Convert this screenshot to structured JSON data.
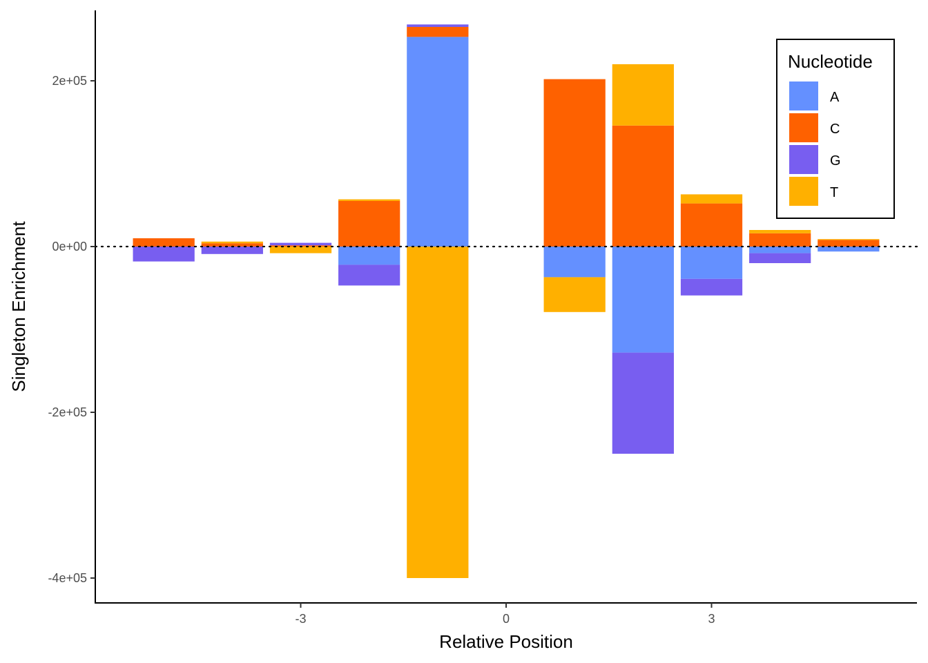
{
  "chart_data": {
    "type": "bar",
    "stacked": "diverging",
    "xlabel": "Relative Position",
    "ylabel": "Singleton Enrichment",
    "x": [
      -5,
      -4,
      -3,
      -2,
      -1,
      1,
      2,
      3,
      4,
      5
    ],
    "xticks": [
      -3,
      0,
      3
    ],
    "xtick_labels": [
      "-3",
      "0",
      "3"
    ],
    "xlim": [
      -6,
      6
    ],
    "ylim": [
      -430000,
      285000
    ],
    "yticks": [
      -400000,
      -200000,
      0,
      200000
    ],
    "ytick_labels": [
      "-4e+05",
      "-2e+05",
      "0e+00",
      "2e+05"
    ],
    "reference_line": {
      "y": 0,
      "style": "dotted"
    },
    "grid": false,
    "legend": {
      "title": "Nucleotide",
      "position": "top-right"
    },
    "series": [
      {
        "name": "A",
        "color": "#6490FF",
        "values": [
          0,
          0,
          0,
          -22000,
          253000,
          -37000,
          -128000,
          -39000,
          -8000,
          -6000
        ]
      },
      {
        "name": "C",
        "color": "#FE6100",
        "values": [
          10000,
          4000,
          1500,
          55000,
          12000,
          202000,
          146000,
          52000,
          16000,
          8000
        ]
      },
      {
        "name": "G",
        "color": "#785EF0",
        "values": [
          -18000,
          -9000,
          3000,
          -25000,
          3000,
          0,
          -122000,
          -20000,
          -12000,
          0
        ]
      },
      {
        "name": "T",
        "color": "#FFB000",
        "values": [
          0,
          2000,
          -8000,
          2000,
          -400000,
          -42000,
          74000,
          11000,
          4000,
          1000
        ]
      }
    ]
  }
}
